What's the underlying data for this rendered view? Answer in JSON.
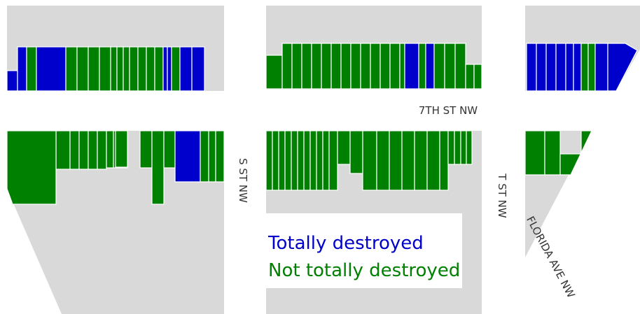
{
  "streets": [
    "7TH ST NW",
    "S ST NW",
    "T ST NW",
    "FLORIDA AVE NW"
  ],
  "legend": [
    {
      "label": "Totally destroyed",
      "color": "#0000cc"
    },
    {
      "label": "Not totally destroyed",
      "color": "#008000"
    }
  ]
}
